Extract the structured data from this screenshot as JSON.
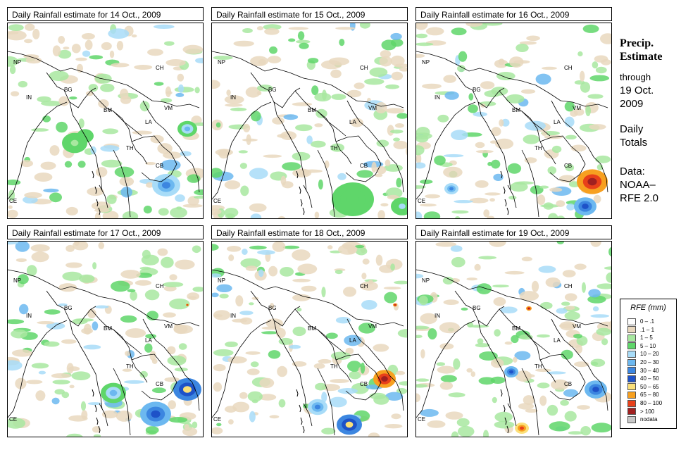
{
  "panels": [
    {
      "title": "Daily Rainfall estimate for  14 Oct., 2009"
    },
    {
      "title": "Daily Rainfall estimate for  15 Oct., 2009"
    },
    {
      "title": "Daily Rainfall estimate for  16 Oct., 2009"
    },
    {
      "title": "Daily Rainfall estimate for  17 Oct., 2009"
    },
    {
      "title": "Daily Rainfall estimate for  18 Oct., 2009"
    },
    {
      "title": "Daily Rainfall estimate for  19 Oct., 2009"
    }
  ],
  "country_labels": [
    "NP",
    "CH",
    "IN",
    "BG",
    "BM",
    "VM",
    "LA",
    "TH",
    "CB",
    "CE"
  ],
  "side": {
    "title_line1": "Precip.",
    "title_line2": "Estimate",
    "through": "through",
    "date_line1": "19 Oct.",
    "date_line2": "2009",
    "daily_line1": "Daily",
    "daily_line2": "Totals",
    "data_line1": "Data:",
    "data_line2": "NOAA–",
    "data_line3": "RFE 2.0"
  },
  "legend": {
    "title": "RFE (mm)",
    "items": [
      {
        "label": "0 – .1",
        "color": "#fdfdfd"
      },
      {
        "label": ".1 – 1",
        "color": "#e9d8be"
      },
      {
        "label": "1 – 5",
        "color": "#a8e8a0"
      },
      {
        "label": "5 – 10",
        "color": "#5fd66a"
      },
      {
        "label": "10 – 20",
        "color": "#a8dcf8"
      },
      {
        "label": "20 – 30",
        "color": "#6cb8f0"
      },
      {
        "label": "30 – 40",
        "color": "#3c86e0"
      },
      {
        "label": "40 – 50",
        "color": "#1e52c8"
      },
      {
        "label": "50 – 65",
        "color": "#fbe07a"
      },
      {
        "label": "65 – 80",
        "color": "#f7a020"
      },
      {
        "label": "80 – 100",
        "color": "#e8401a"
      },
      {
        "label": "> 100",
        "color": "#a02020"
      },
      {
        "label": "nodata",
        "color": "#c8c8c8"
      }
    ]
  }
}
